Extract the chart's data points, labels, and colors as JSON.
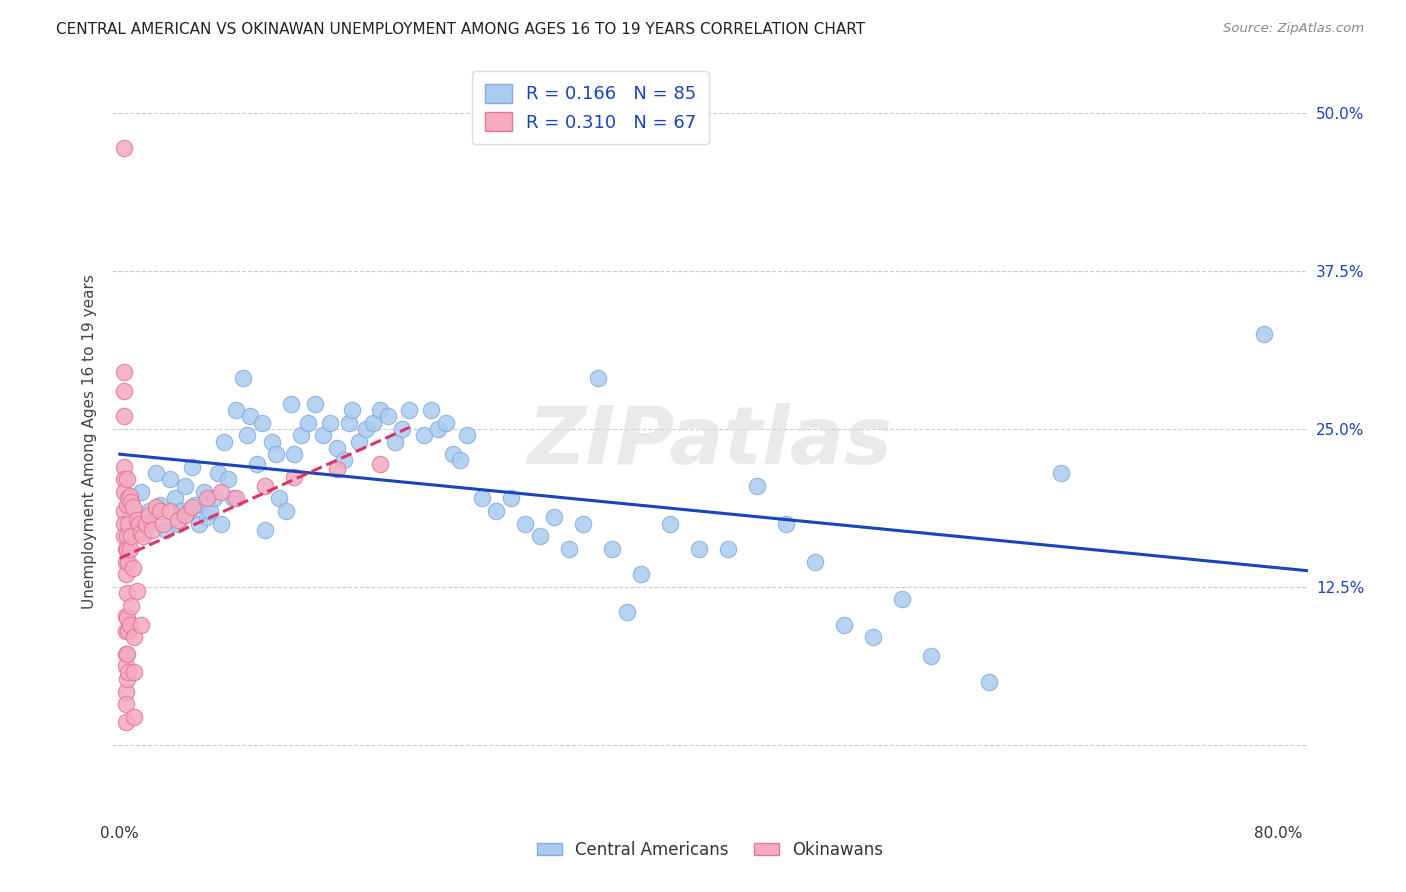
{
  "title": "CENTRAL AMERICAN VS OKINAWAN UNEMPLOYMENT AMONG AGES 16 TO 19 YEARS CORRELATION CHART",
  "source": "Source: ZipAtlas.com",
  "ylabel": "Unemployment Among Ages 16 to 19 years",
  "xlim": [
    -0.005,
    0.82
  ],
  "ylim": [
    -0.06,
    0.54
  ],
  "xtick_positions": [
    0.0,
    0.1,
    0.2,
    0.3,
    0.4,
    0.5,
    0.6,
    0.7,
    0.8
  ],
  "xticklabels": [
    "0.0%",
    "",
    "",
    "",
    "",
    "",
    "",
    "",
    "80.0%"
  ],
  "ytick_grid_vals": [
    0.0,
    0.125,
    0.25,
    0.375,
    0.5
  ],
  "ytick_right_vals": [
    0.125,
    0.25,
    0.375,
    0.5
  ],
  "ytick_right_labels": [
    "12.5%",
    "25.0%",
    "37.5%",
    "50.0%"
  ],
  "R_blue": 0.166,
  "N_blue": 85,
  "R_pink": 0.31,
  "N_pink": 67,
  "blue_color": "#aaccf0",
  "blue_edge": "#88aadd",
  "pink_color": "#f5aac0",
  "pink_edge": "#e07898",
  "blue_line_color": "#1a44bb",
  "pink_line_color": "#dd3366",
  "watermark": "ZIPatlas",
  "blue_x": [
    0.015,
    0.02,
    0.025,
    0.028,
    0.032,
    0.035,
    0.038,
    0.04,
    0.042,
    0.045,
    0.048,
    0.05,
    0.052,
    0.055,
    0.058,
    0.06,
    0.062,
    0.065,
    0.068,
    0.07,
    0.072,
    0.075,
    0.078,
    0.08,
    0.085,
    0.088,
    0.09,
    0.095,
    0.098,
    0.1,
    0.105,
    0.108,
    0.11,
    0.115,
    0.118,
    0.12,
    0.125,
    0.13,
    0.135,
    0.14,
    0.145,
    0.15,
    0.155,
    0.158,
    0.16,
    0.165,
    0.17,
    0.175,
    0.18,
    0.185,
    0.19,
    0.195,
    0.2,
    0.21,
    0.215,
    0.22,
    0.225,
    0.23,
    0.235,
    0.24,
    0.25,
    0.26,
    0.27,
    0.28,
    0.29,
    0.3,
    0.31,
    0.32,
    0.33,
    0.34,
    0.35,
    0.36,
    0.38,
    0.4,
    0.42,
    0.44,
    0.46,
    0.48,
    0.5,
    0.52,
    0.54,
    0.56,
    0.6,
    0.65,
    0.79
  ],
  "blue_y": [
    0.2,
    0.185,
    0.215,
    0.19,
    0.17,
    0.21,
    0.195,
    0.175,
    0.185,
    0.205,
    0.185,
    0.22,
    0.19,
    0.175,
    0.2,
    0.18,
    0.185,
    0.195,
    0.215,
    0.175,
    0.24,
    0.21,
    0.195,
    0.265,
    0.29,
    0.245,
    0.26,
    0.222,
    0.255,
    0.17,
    0.24,
    0.23,
    0.195,
    0.185,
    0.27,
    0.23,
    0.245,
    0.255,
    0.27,
    0.245,
    0.255,
    0.235,
    0.225,
    0.255,
    0.265,
    0.24,
    0.25,
    0.255,
    0.265,
    0.26,
    0.24,
    0.25,
    0.265,
    0.245,
    0.265,
    0.25,
    0.255,
    0.23,
    0.225,
    0.245,
    0.195,
    0.185,
    0.195,
    0.175,
    0.165,
    0.18,
    0.155,
    0.175,
    0.29,
    0.155,
    0.105,
    0.135,
    0.175,
    0.155,
    0.155,
    0.205,
    0.175,
    0.145,
    0.095,
    0.085,
    0.115,
    0.07,
    0.05,
    0.215,
    0.325
  ],
  "pink_x": [
    0.003,
    0.003,
    0.003,
    0.003,
    0.003,
    0.003,
    0.003,
    0.003,
    0.003,
    0.003,
    0.004,
    0.004,
    0.004,
    0.004,
    0.004,
    0.004,
    0.004,
    0.004,
    0.004,
    0.004,
    0.005,
    0.005,
    0.005,
    0.005,
    0.005,
    0.005,
    0.005,
    0.005,
    0.006,
    0.006,
    0.006,
    0.006,
    0.006,
    0.007,
    0.007,
    0.007,
    0.008,
    0.008,
    0.008,
    0.009,
    0.009,
    0.01,
    0.01,
    0.01,
    0.012,
    0.012,
    0.013,
    0.015,
    0.015,
    0.016,
    0.018,
    0.02,
    0.022,
    0.025,
    0.028,
    0.03,
    0.035,
    0.04,
    0.045,
    0.05,
    0.06,
    0.07,
    0.08,
    0.1,
    0.12,
    0.15,
    0.18
  ],
  "pink_y": [
    0.472,
    0.28,
    0.295,
    0.26,
    0.22,
    0.21,
    0.2,
    0.185,
    0.175,
    0.165,
    0.155,
    0.145,
    0.135,
    0.102,
    0.09,
    0.072,
    0.062,
    0.042,
    0.032,
    0.018,
    0.21,
    0.19,
    0.165,
    0.155,
    0.12,
    0.1,
    0.072,
    0.052,
    0.195,
    0.175,
    0.145,
    0.09,
    0.058,
    0.197,
    0.155,
    0.095,
    0.192,
    0.165,
    0.11,
    0.188,
    0.14,
    0.085,
    0.058,
    0.022,
    0.178,
    0.122,
    0.175,
    0.168,
    0.095,
    0.165,
    0.175,
    0.182,
    0.17,
    0.188,
    0.185,
    0.175,
    0.185,
    0.178,
    0.182,
    0.188,
    0.195,
    0.2,
    0.195,
    0.205,
    0.212,
    0.218,
    0.222
  ]
}
